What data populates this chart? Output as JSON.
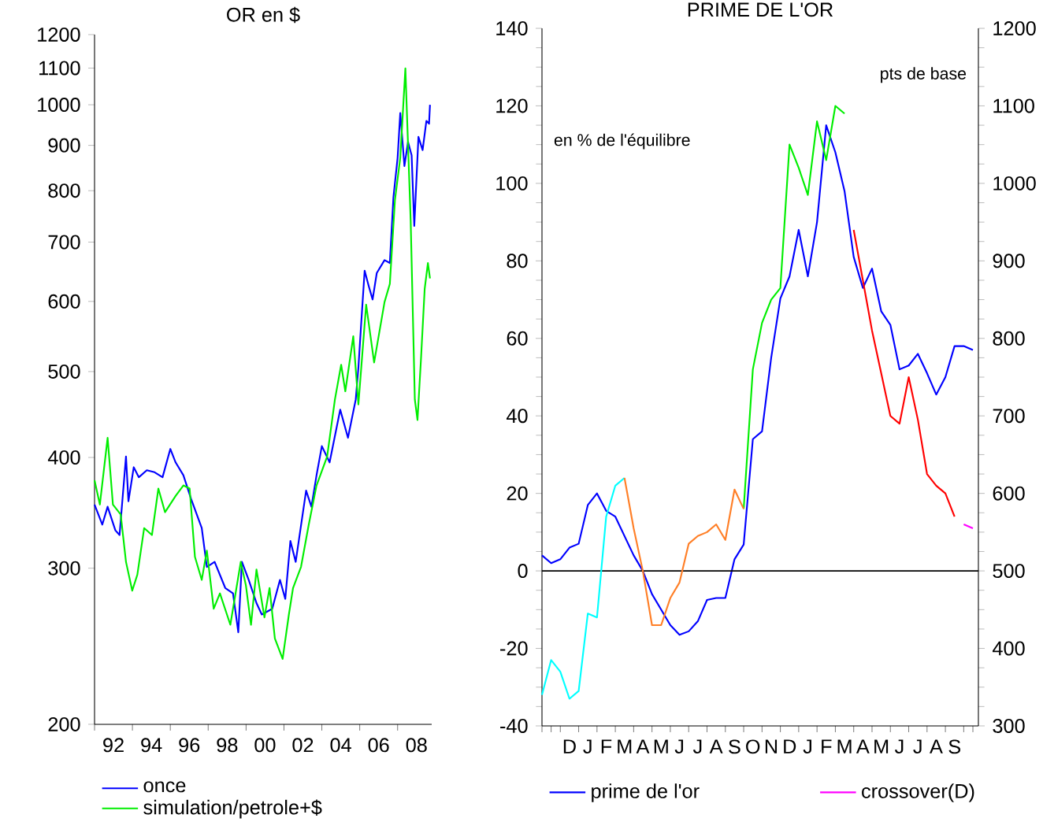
{
  "chart_data": [
    {
      "type": "line",
      "title": "OR en $",
      "log": true,
      "legend": "bottom",
      "xlim": [
        1991,
        2008.8
      ],
      "ylim": [
        200,
        1200
      ],
      "xticks": [
        {
          "value": 1991,
          "label": null
        },
        {
          "value": 1992,
          "label": "92"
        },
        {
          "value": 1993,
          "label": null
        },
        {
          "value": 1994,
          "label": "94"
        },
        {
          "value": 1995,
          "label": null
        },
        {
          "value": 1996,
          "label": "96"
        },
        {
          "value": 1997,
          "label": null
        },
        {
          "value": 1998,
          "label": "98"
        },
        {
          "value": 1999,
          "label": null
        },
        {
          "value": 2000,
          "label": "00"
        },
        {
          "value": 2001,
          "label": null
        },
        {
          "value": 2002,
          "label": "02"
        },
        {
          "value": 2003,
          "label": null
        },
        {
          "value": 2004,
          "label": "04"
        },
        {
          "value": 2005,
          "label": null
        },
        {
          "value": 2006,
          "label": "06"
        },
        {
          "value": 2007,
          "label": null
        },
        {
          "value": 2008,
          "label": "08"
        }
      ],
      "yticks": [
        200,
        300,
        400,
        500,
        600,
        700,
        800,
        900,
        1000,
        1100,
        1200
      ],
      "series": [
        {
          "name": "once",
          "color": "#0000ff",
          "x": [
            1991.0,
            1991.41,
            1991.69,
            1992.1,
            1992.32,
            1992.66,
            1992.79,
            1993.07,
            1993.34,
            1993.76,
            1994.17,
            1994.59,
            1995.0,
            1995.28,
            1995.69,
            1996.1,
            1996.66,
            1996.93,
            1997.34,
            1997.9,
            1998.31,
            1998.59,
            1998.78,
            1999.14,
            1999.55,
            1999.83,
            2000.38,
            2000.79,
            2001.07,
            2001.34,
            2001.62,
            2002.17,
            2002.45,
            2002.72,
            2003.0,
            2003.41,
            2003.97,
            2004.38,
            2004.79,
            2004.93,
            2005.07,
            2005.26,
            2005.48,
            2005.68,
            2005.9,
            2006.31,
            2006.59,
            2006.78,
            2007.0,
            2007.14,
            2007.36,
            2007.55,
            2007.74,
            2007.88,
            2008.1,
            2008.32,
            2008.52,
            2008.66,
            2008.71
          ],
          "values": [
            354,
            336,
            352,
            331,
            327,
            401,
            357,
            390,
            380,
            387,
            385,
            380,
            409,
            395,
            382,
            359,
            333,
            301,
            305,
            285,
            281,
            254,
            305,
            291,
            274,
            266,
            270,
            291,
            277,
            322,
            305,
            367,
            352,
            382,
            412,
            395,
            453,
            421,
            465,
            505,
            563,
            650,
            624,
            603,
            646,
            668,
            663,
            787,
            871,
            979,
            853,
            908,
            877,
            730,
            920,
            889,
            959,
            952,
            1000
          ]
        },
        {
          "name": "simulation/petrole+$",
          "color": "#00ee00",
          "x": [
            1991.0,
            1991.28,
            1991.69,
            1991.97,
            1992.38,
            1992.66,
            1992.99,
            1993.26,
            1993.62,
            1994.03,
            1994.37,
            1994.72,
            1995.28,
            1995.69,
            1996.02,
            1996.3,
            1996.66,
            1996.93,
            1997.29,
            1997.62,
            1998.17,
            1998.72,
            1998.99,
            1999.26,
            1999.55,
            1999.97,
            2000.24,
            2000.52,
            2000.93,
            2001.26,
            2001.48,
            2001.9,
            2002.31,
            2002.72,
            2003.28,
            2003.69,
            2004.02,
            2004.24,
            2004.66,
            2004.93,
            2005.34,
            2005.76,
            2006.31,
            2006.59,
            2006.86,
            2007.14,
            2007.41,
            2007.69,
            2007.91,
            2008.05,
            2008.24,
            2008.43,
            2008.6,
            2008.71
          ],
          "values": [
            377,
            354,
            421,
            354,
            345,
            305,
            283,
            295,
            333,
            327,
            369,
            347,
            362,
            372,
            369,
            309,
            291,
            314,
            270,
            281,
            259,
            305,
            287,
            259,
            299,
            264,
            285,
            250,
            237,
            266,
            285,
            301,
            336,
            372,
            401,
            465,
            509,
            475,
            548,
            459,
            595,
            512,
            599,
            628,
            781,
            871,
            1099,
            740,
            465,
            441,
            519,
            620,
            663,
            637
          ]
        }
      ]
    },
    {
      "type": "line",
      "title": "PRIME DE L'OR",
      "ylabel": "en % de l'équilibre",
      "y2label": "pts de base",
      "legend": "bottom",
      "ylim": [
        -40,
        140
      ],
      "y2lim": [
        300,
        1200
      ],
      "categories": [
        null,
        null,
        null,
        "D",
        null,
        "J",
        null,
        "F",
        null,
        "M",
        null,
        "A",
        null,
        "M",
        null,
        "J",
        null,
        "J",
        null,
        "A",
        null,
        "S",
        null,
        "O",
        null,
        "N",
        null,
        "D",
        null,
        "J",
        null,
        "F",
        null,
        "M",
        null,
        "A",
        null,
        "M",
        null,
        "J",
        null,
        "J",
        null,
        "A",
        null,
        "S",
        null,
        null
      ],
      "yticks": [
        -40,
        -20,
        0,
        20,
        40,
        60,
        80,
        100,
        120,
        140
      ],
      "y2ticks": [
        300,
        400,
        500,
        600,
        700,
        800,
        900,
        1000,
        1100,
        1200
      ],
      "ref_lines": [
        {
          "axis": "y",
          "value": 0,
          "color": "#000000"
        }
      ],
      "series": [
        {
          "name": "prime de l'or",
          "color": "#0000ff",
          "values": [
            4,
            2,
            3,
            6,
            7,
            17,
            20,
            15.5,
            14,
            9,
            4,
            0,
            -6,
            -10,
            -14,
            -16.5,
            -15.6,
            -13,
            -7.5,
            -7,
            -7,
            3,
            6.8,
            34,
            36,
            55,
            70.3,
            76,
            88,
            76,
            90,
            115,
            108,
            98,
            81,
            73,
            78,
            67,
            63.5,
            52,
            53,
            56,
            51,
            45.5,
            50,
            58,
            58,
            57
          ]
        },
        {
          "color": "#00ee00",
          "axis": "y2",
          "values": [
            null,
            null,
            null,
            null,
            null,
            null,
            null,
            null,
            null,
            null,
            null,
            null,
            null,
            null,
            null,
            null,
            null,
            null,
            null,
            null,
            null,
            null,
            580,
            760,
            820,
            850,
            865,
            1050,
            1020,
            985,
            1080,
            1030,
            1100,
            1090,
            null,
            null,
            null,
            null,
            null,
            null,
            null,
            null,
            null,
            null,
            null,
            null,
            null,
            null
          ]
        },
        {
          "color": "#00ffff",
          "axis": "y2",
          "values": [
            340,
            385,
            370,
            335,
            345,
            445,
            440,
            570,
            610,
            620,
            null,
            null,
            null,
            null,
            null,
            null,
            null,
            null,
            null,
            null,
            null,
            null,
            null,
            null,
            null,
            null,
            null,
            null,
            null,
            null,
            null,
            null,
            null,
            null,
            null,
            null,
            null,
            null,
            null,
            null,
            null,
            null,
            null,
            null,
            null,
            null,
            null,
            null
          ]
        },
        {
          "color": "#ff7f27",
          "axis": "y2",
          "values": [
            null,
            null,
            null,
            null,
            null,
            null,
            null,
            null,
            null,
            620,
            555,
            500,
            430,
            430,
            465,
            485,
            535,
            545,
            550,
            560,
            540,
            605,
            580,
            null,
            null,
            null,
            null,
            null,
            null,
            null,
            null,
            null,
            null,
            null,
            null,
            null,
            null,
            null,
            null,
            null,
            null,
            null,
            null,
            null,
            null,
            null,
            null,
            null
          ]
        },
        {
          "color": "#ff0000",
          "axis": "y2",
          "values": [
            null,
            null,
            null,
            null,
            null,
            null,
            null,
            null,
            null,
            null,
            null,
            null,
            null,
            null,
            null,
            null,
            null,
            null,
            null,
            null,
            null,
            null,
            null,
            null,
            null,
            null,
            null,
            null,
            null,
            null,
            null,
            null,
            null,
            null,
            940,
            875,
            810,
            755,
            700,
            690,
            750,
            695,
            625,
            610,
            600,
            570,
            null,
            null
          ]
        },
        {
          "name": "crossover(D)",
          "color": "#ff00ff",
          "axis": "y2",
          "values": [
            null,
            null,
            null,
            null,
            null,
            null,
            null,
            null,
            null,
            null,
            null,
            null,
            null,
            null,
            null,
            null,
            null,
            null,
            null,
            null,
            null,
            null,
            null,
            null,
            null,
            null,
            null,
            null,
            null,
            null,
            null,
            null,
            null,
            null,
            null,
            null,
            null,
            null,
            null,
            null,
            null,
            null,
            null,
            null,
            null,
            null,
            560,
            555
          ]
        }
      ]
    }
  ]
}
